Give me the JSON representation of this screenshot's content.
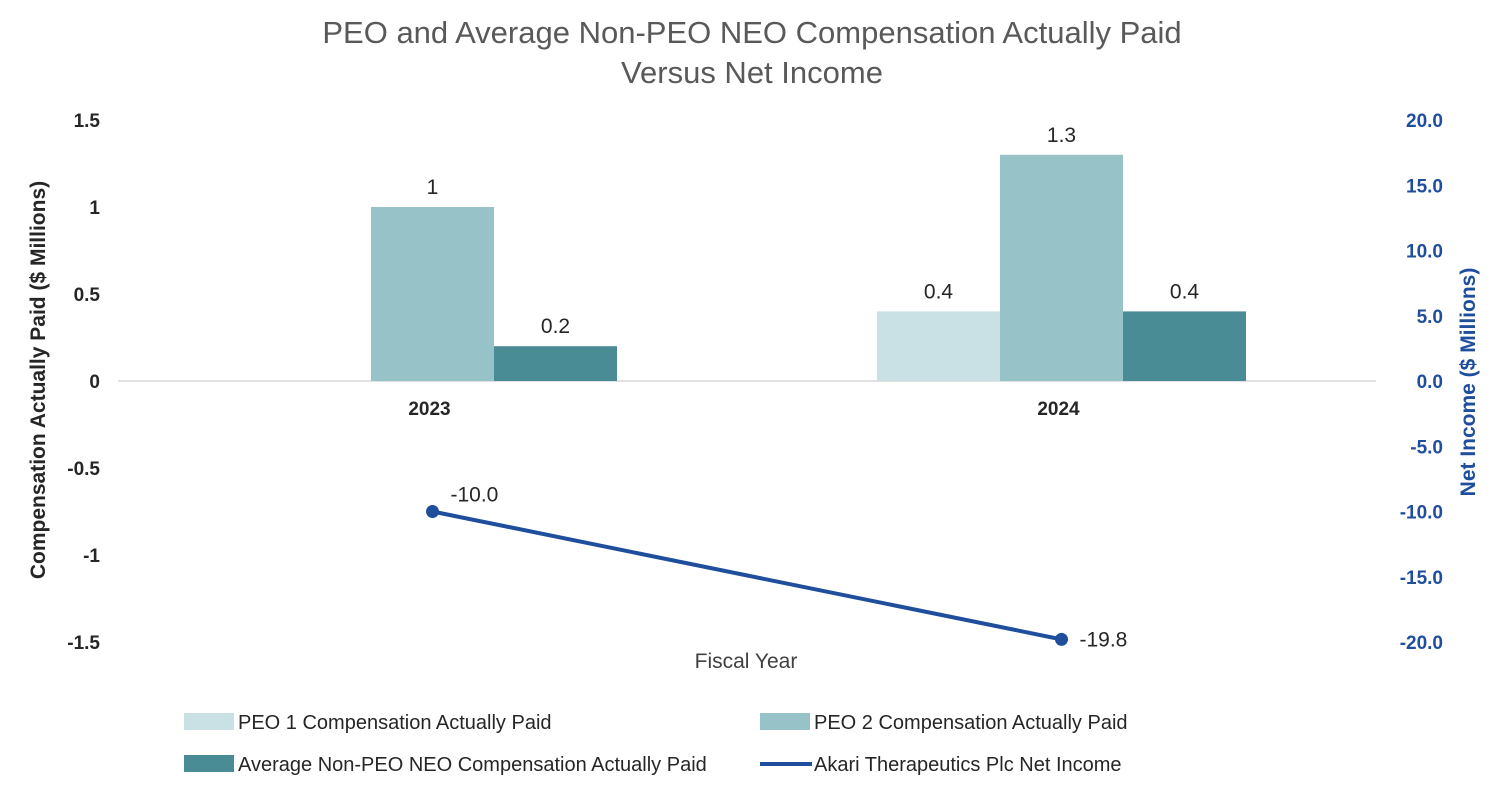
{
  "chart_data": {
    "type": "bar",
    "title": [
      "PEO and Average Non-PEO NEO Compensation Actually Paid",
      "Versus Net Income"
    ],
    "xlabel": "Fiscal Year",
    "ylabel": "Compensation Actually Paid ($ Millions)",
    "y2label": "Net Income ($ Millions)",
    "categories": [
      "2023",
      "2024"
    ],
    "ylim": [
      -1.5,
      1.5
    ],
    "y2lim": [
      -20,
      20
    ],
    "yticks": [
      "1.5",
      "1",
      "0.5",
      "0",
      "-0.5",
      "-1",
      "-1.5"
    ],
    "y2ticks": [
      "20.0",
      "15.0",
      "10.0",
      "5.0",
      "0.0",
      "-5.0",
      "-10.0",
      "-15.0",
      "-20.0"
    ],
    "grid": false,
    "legend_position": "bottom",
    "series": [
      {
        "name": "PEO 1 Compensation Actually Paid",
        "kind": "bar",
        "axis": "left",
        "color": "#c9e1e4",
        "values": [
          null,
          0.4
        ],
        "labels": [
          null,
          "0.4"
        ]
      },
      {
        "name": "PEO 2 Compensation Actually Paid",
        "kind": "bar",
        "axis": "left",
        "color": "#96c2c8",
        "values": [
          1.0,
          1.3
        ],
        "labels": [
          "1",
          "1.3"
        ]
      },
      {
        "name": "Average Non-PEO NEO Compensation Actually Paid",
        "kind": "bar",
        "axis": "left",
        "color": "#4a8c96",
        "values": [
          0.2,
          0.4
        ],
        "labels": [
          "0.2",
          "0.4"
        ]
      },
      {
        "name": "Akari Therapeutics Plc Net Income",
        "kind": "line",
        "axis": "right",
        "color": "#1f4e9c",
        "values": [
          -10.0,
          -19.8
        ],
        "labels": [
          "-10.0",
          "-19.8"
        ]
      }
    ]
  }
}
